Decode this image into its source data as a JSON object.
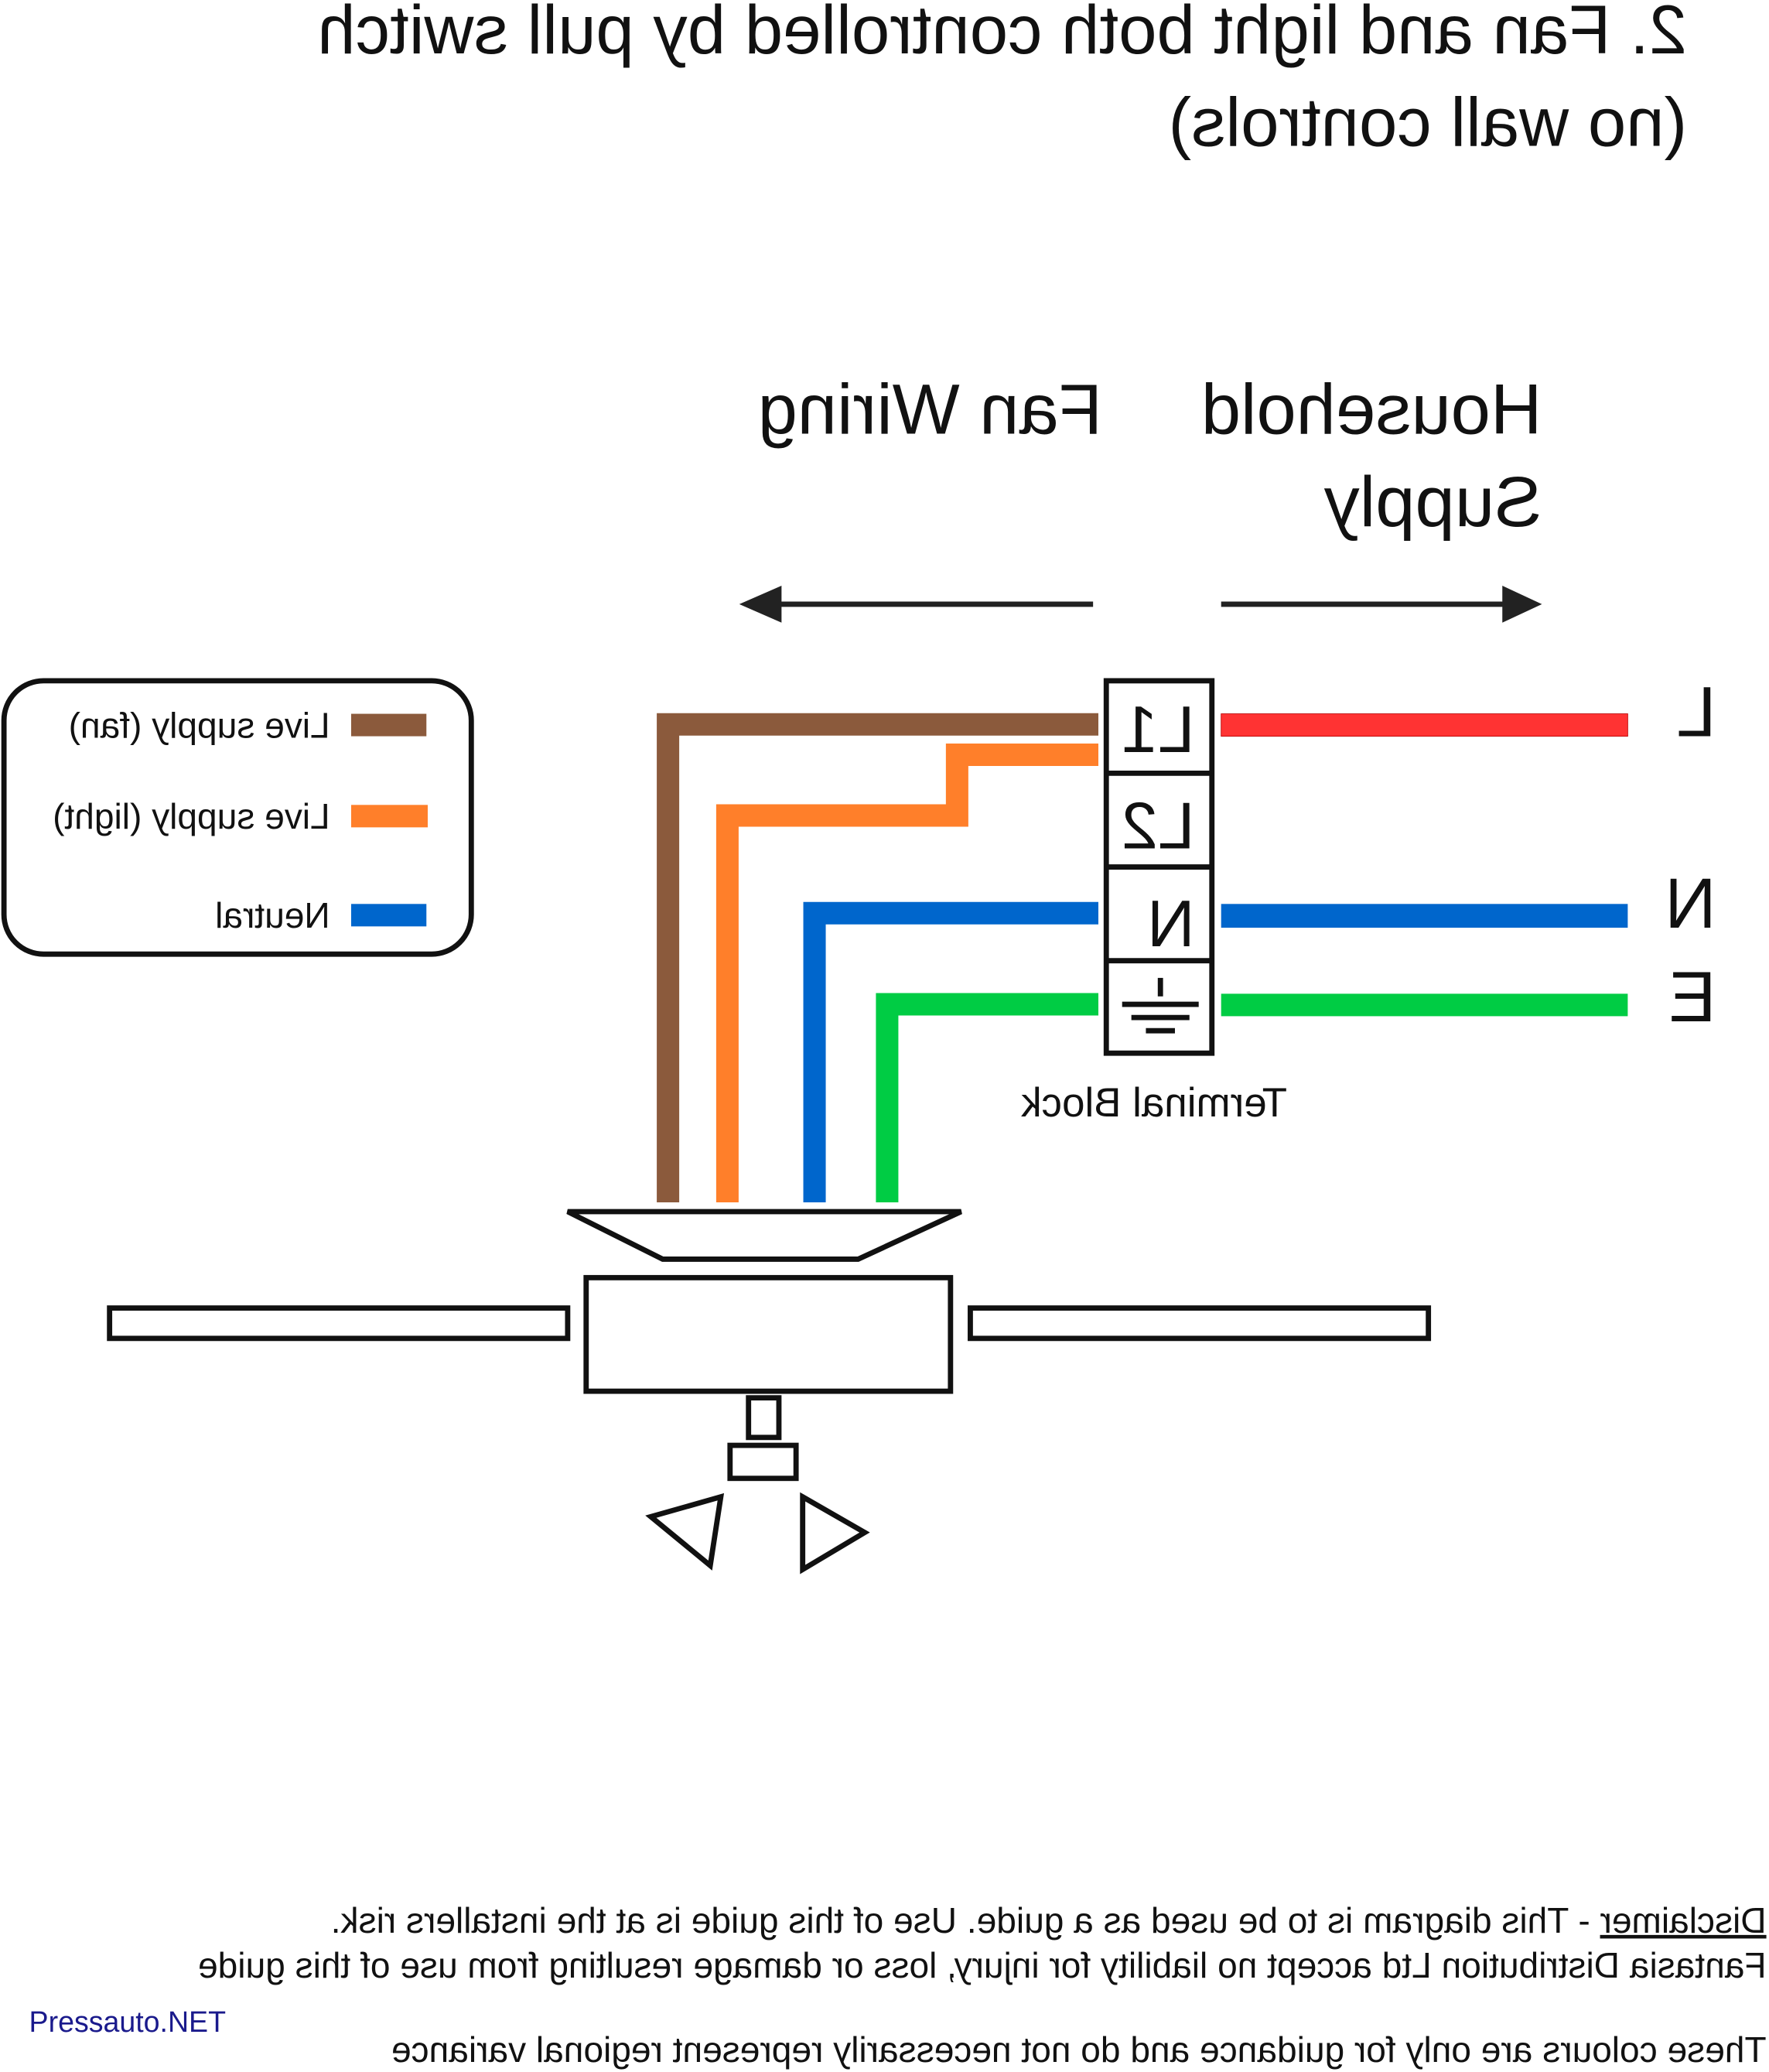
{
  "title": {
    "line1": "2. Fan and light both controlled by pull switch",
    "line2": "(no wall controls)"
  },
  "headers": {
    "household_line1": "Household",
    "household_line2": "Supply",
    "fan_wiring": "Fan Wiring"
  },
  "legend": {
    "items": [
      {
        "label": "Live supply (fan)",
        "color": "#8B5A3C"
      },
      {
        "label": "Live supply (light)",
        "color": "#FF7F2A"
      },
      {
        "label": "Neutral",
        "color": "#0066CC"
      }
    ]
  },
  "terminal_block": {
    "label": "Terminal Block",
    "terminals": [
      "L1",
      "L2",
      "N"
    ],
    "earth_icon": "earth-ground-icon"
  },
  "supply_labels": {
    "live": "L",
    "neutral": "N",
    "earth": "E"
  },
  "wire_colors": {
    "live_supply": "#FF3333",
    "fan_live": "#8B5A3C",
    "light_live": "#FF7F2A",
    "neutral": "#0066CC",
    "earth": "#00CC44"
  },
  "disclaimer": {
    "heading": "Disclaimer",
    "line1": " - This diagram is to be used as a guide.  Use of this guide is at the installers risk.",
    "line2": "Fantasia Distribution Ltd accept no liability for injury, loss or damage resulting from use of this guide",
    "line3": "These colours are only for guidance and do not necessarily represent regional variance"
  },
  "watermark": "Pressauto.NET"
}
